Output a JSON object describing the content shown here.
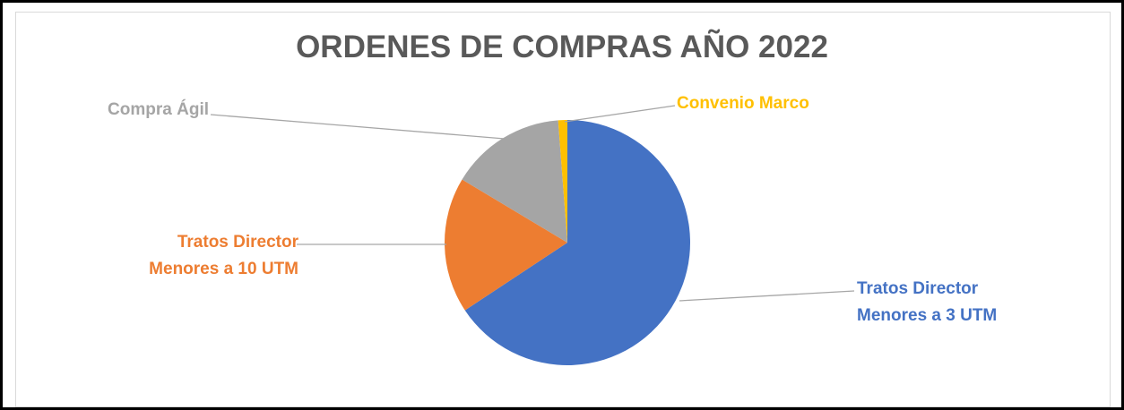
{
  "chart_data": {
    "type": "pie",
    "title": "ORDENES DE COMPRAS AÑO 2022",
    "categories": [
      "Tratos Director Menores a 3 UTM",
      "Tratos Director Menores a 10 UTM",
      "Compra Ágil",
      "Convenio Marco"
    ],
    "values": [
      65.7,
      17.9,
      15.2,
      1.2
    ],
    "colors": [
      "#4472c4",
      "#ed7d31",
      "#a5a5a5",
      "#ffc000"
    ]
  }
}
